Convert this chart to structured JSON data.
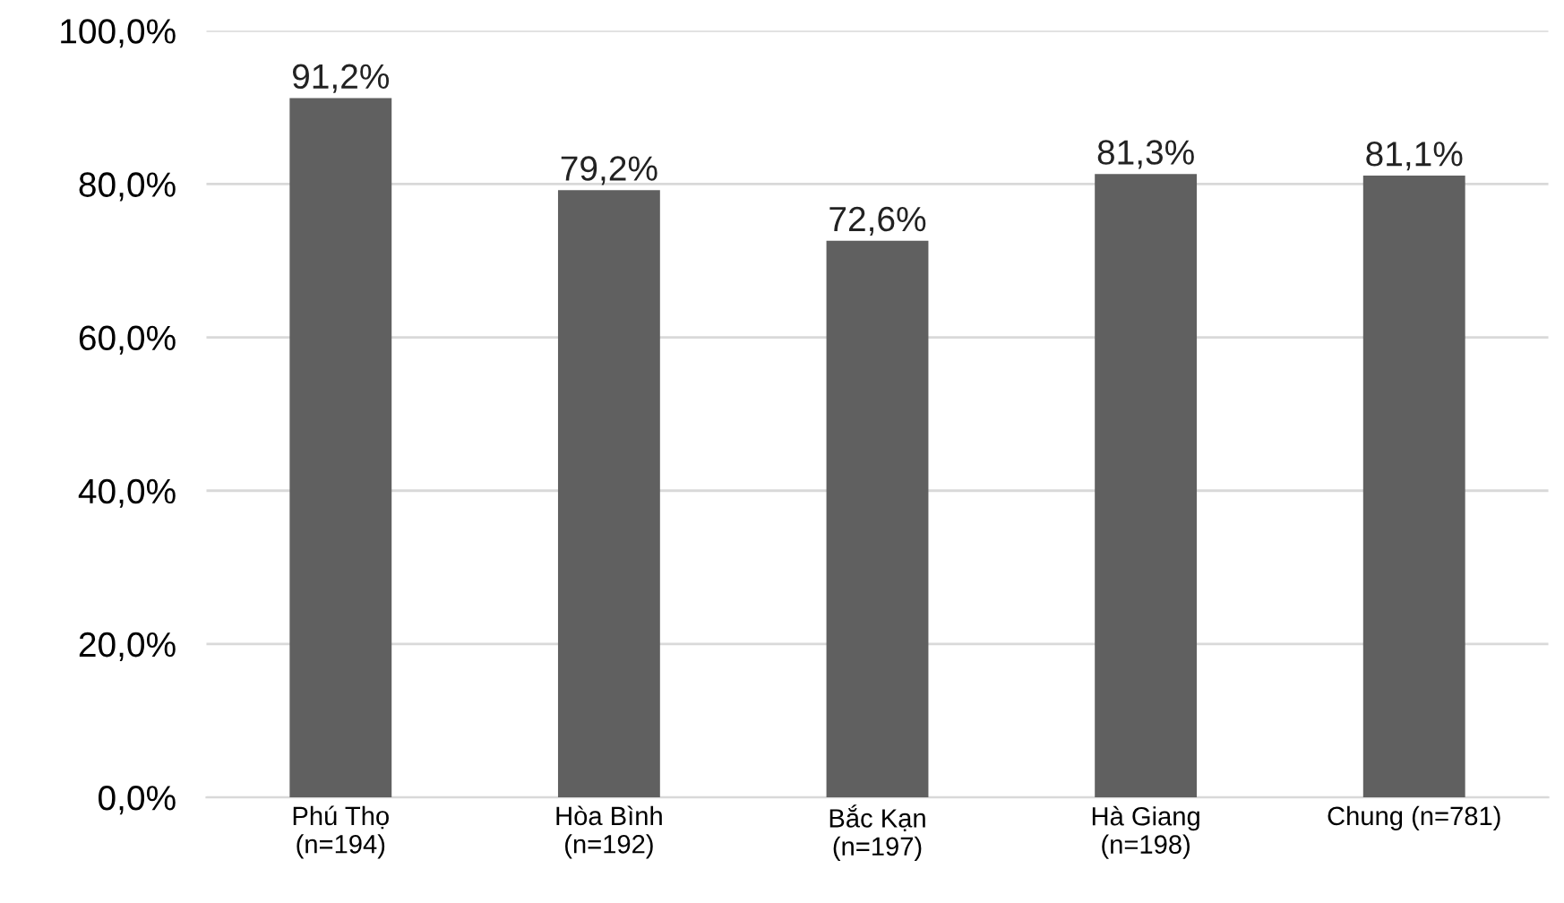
{
  "chart_data": {
    "type": "bar",
    "categories": [
      "Phú Thọ\n(n=194)",
      "Hòa Bình\n(n=192)",
      "Bắc Kạn\n(n=197)",
      "Hà Giang\n(n=198)",
      "Chung (n=781)"
    ],
    "values": [
      91.2,
      79.2,
      72.6,
      81.3,
      81.1
    ],
    "value_labels": [
      "91,2%",
      "79,2%",
      "72,6%",
      "81,3%",
      "81,1%"
    ],
    "color": "#606060",
    "ylim": [
      0,
      100
    ],
    "yticks": [
      {
        "value": 0,
        "label": "0,0%"
      },
      {
        "value": 20,
        "label": "20,0%"
      },
      {
        "value": 40,
        "label": "40,0%"
      },
      {
        "value": 60,
        "label": "60,0%"
      },
      {
        "value": 80,
        "label": "80,0%"
      },
      {
        "value": 100,
        "label": "100,0%"
      }
    ],
    "grid": "y"
  }
}
